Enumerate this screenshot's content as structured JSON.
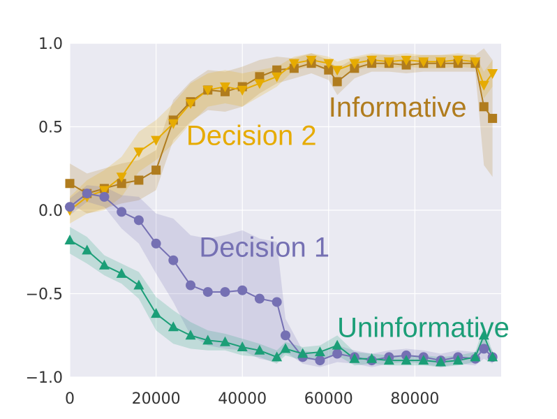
{
  "chart_data": {
    "type": "line",
    "title": "",
    "xlabel": "",
    "ylabel": "",
    "xlim": [
      0,
      100000
    ],
    "ylim": [
      -1.0,
      1.0
    ],
    "grid": true,
    "x_ticks": [
      0,
      20000,
      40000,
      60000,
      80000
    ],
    "x_tick_labels": [
      "0",
      "20000",
      "40000",
      "60000",
      "80000"
    ],
    "y_ticks": [
      -1.0,
      -0.5,
      0.0,
      0.5,
      1.0
    ],
    "y_tick_labels": [
      "−1.0",
      "−0.5",
      "0.0",
      "0.5",
      "1.0"
    ],
    "series": [
      {
        "name": "Informative",
        "color": "#b07c1e",
        "marker": "square",
        "x": [
          0,
          4000,
          8000,
          12000,
          16000,
          20000,
          24000,
          28000,
          32000,
          36000,
          40000,
          44000,
          48000,
          52000,
          56000,
          60000,
          62000,
          66000,
          70000,
          74000,
          78000,
          82000,
          86000,
          90000,
          94000,
          96000,
          98000
        ],
        "y": [
          0.16,
          0.1,
          0.13,
          0.16,
          0.18,
          0.24,
          0.54,
          0.65,
          0.72,
          0.71,
          0.74,
          0.8,
          0.84,
          0.85,
          0.88,
          0.84,
          0.77,
          0.85,
          0.88,
          0.88,
          0.87,
          0.88,
          0.88,
          0.88,
          0.88,
          0.62,
          0.55
        ],
        "band": [
          0.12,
          0.12,
          0.12,
          0.12,
          0.12,
          0.12,
          0.12,
          0.12,
          0.12,
          0.12,
          0.12,
          0.1,
          0.08,
          0.06,
          0.06,
          0.06,
          0.08,
          0.06,
          0.05,
          0.05,
          0.05,
          0.05,
          0.05,
          0.05,
          0.05,
          0.35,
          0.35
        ]
      },
      {
        "name": "Decision 2",
        "color": "#e6ab02",
        "marker": "triangle-down",
        "x": [
          0,
          4000,
          8000,
          12000,
          16000,
          20000,
          24000,
          28000,
          32000,
          36000,
          40000,
          44000,
          48000,
          52000,
          56000,
          60000,
          62000,
          66000,
          70000,
          74000,
          78000,
          82000,
          86000,
          90000,
          94000,
          96000,
          98000
        ],
        "y": [
          0.0,
          0.08,
          0.12,
          0.2,
          0.35,
          0.42,
          0.52,
          0.64,
          0.72,
          0.74,
          0.72,
          0.76,
          0.8,
          0.88,
          0.9,
          0.88,
          0.84,
          0.88,
          0.9,
          0.89,
          0.9,
          0.89,
          0.89,
          0.9,
          0.89,
          0.75,
          0.82
        ],
        "band": [
          0.08,
          0.1,
          0.12,
          0.12,
          0.12,
          0.12,
          0.12,
          0.12,
          0.1,
          0.1,
          0.1,
          0.08,
          0.06,
          0.04,
          0.04,
          0.04,
          0.05,
          0.04,
          0.04,
          0.04,
          0.04,
          0.04,
          0.04,
          0.04,
          0.04,
          0.08,
          0.08
        ]
      },
      {
        "name": "Decision 1",
        "color": "#7570b3",
        "marker": "circle",
        "x": [
          0,
          4000,
          8000,
          12000,
          16000,
          20000,
          24000,
          28000,
          32000,
          36000,
          40000,
          44000,
          48000,
          50000,
          54000,
          58000,
          62000,
          66000,
          70000,
          74000,
          78000,
          82000,
          86000,
          90000,
          94000,
          96000,
          98000
        ],
        "y": [
          0.02,
          0.1,
          0.08,
          -0.01,
          -0.06,
          -0.2,
          -0.3,
          -0.45,
          -0.49,
          -0.49,
          -0.48,
          -0.53,
          -0.55,
          -0.75,
          -0.88,
          -0.9,
          -0.86,
          -0.88,
          -0.9,
          -0.88,
          -0.87,
          -0.88,
          -0.9,
          -0.88,
          -0.89,
          -0.83,
          -0.88
        ],
        "band": [
          0.05,
          0.05,
          0.06,
          0.1,
          0.14,
          0.18,
          0.25,
          0.3,
          0.32,
          0.34,
          0.36,
          0.36,
          0.36,
          0.1,
          0.04,
          0.04,
          0.05,
          0.04,
          0.04,
          0.04,
          0.04,
          0.04,
          0.04,
          0.04,
          0.04,
          0.06,
          0.04
        ]
      },
      {
        "name": "Uninformative",
        "color": "#1b9e77",
        "marker": "triangle-up",
        "x": [
          0,
          4000,
          8000,
          12000,
          16000,
          20000,
          24000,
          28000,
          32000,
          36000,
          40000,
          44000,
          48000,
          50000,
          54000,
          58000,
          62000,
          66000,
          70000,
          74000,
          78000,
          82000,
          86000,
          90000,
          94000,
          96000,
          98000
        ],
        "y": [
          -0.18,
          -0.24,
          -0.33,
          -0.38,
          -0.45,
          -0.62,
          -0.7,
          -0.75,
          -0.78,
          -0.79,
          -0.82,
          -0.84,
          -0.88,
          -0.83,
          -0.86,
          -0.85,
          -0.81,
          -0.89,
          -0.89,
          -0.9,
          -0.9,
          -0.9,
          -0.91,
          -0.9,
          -0.88,
          -0.75,
          -0.88
        ],
        "band": [
          0.08,
          0.08,
          0.06,
          0.06,
          0.08,
          0.1,
          0.1,
          0.08,
          0.06,
          0.05,
          0.05,
          0.04,
          0.04,
          0.04,
          0.04,
          0.04,
          0.06,
          0.04,
          0.03,
          0.03,
          0.03,
          0.03,
          0.03,
          0.03,
          0.03,
          0.06,
          0.03
        ]
      }
    ],
    "annotations": [
      {
        "text": "Informative",
        "series": "Informative",
        "x": 60000,
        "y": 0.62,
        "anchor": "start"
      },
      {
        "text": "Decision 2",
        "series": "Decision 2",
        "x": 27000,
        "y": 0.45,
        "anchor": "start"
      },
      {
        "text": "Decision 1",
        "series": "Decision 1",
        "x": 30000,
        "y": -0.22,
        "anchor": "start"
      },
      {
        "text": "Uninformative",
        "series": "Uninformative",
        "x": 62000,
        "y": -0.7,
        "anchor": "start"
      }
    ]
  }
}
